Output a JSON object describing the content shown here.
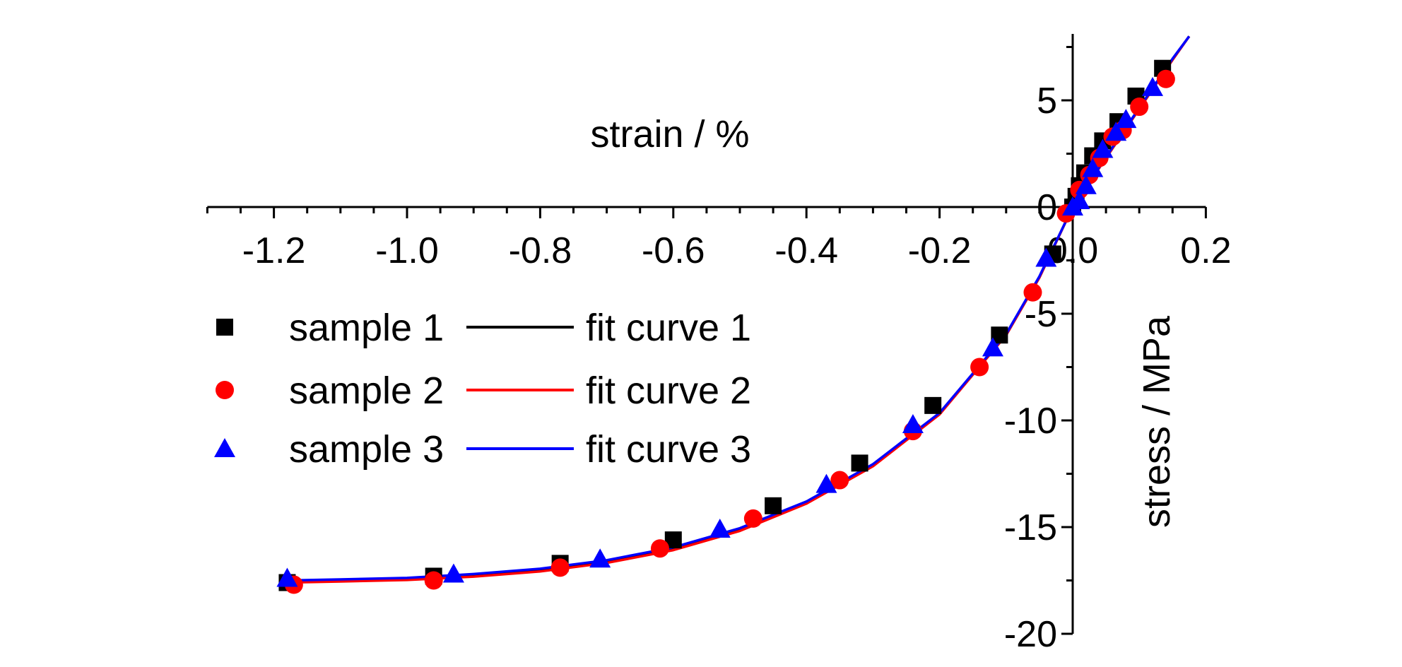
{
  "chart_data": {
    "type": "scatter",
    "xlabel": "strain / %",
    "ylabel": "stress / MPa",
    "xlim": [
      -1.3,
      0.2
    ],
    "ylim": [
      -20,
      8
    ],
    "x_ticks": [
      -1.2,
      -1.0,
      -0.8,
      -0.6,
      -0.4,
      -0.2,
      0.0,
      0.2
    ],
    "x_tick_labels": [
      "-1.2",
      "-1.0",
      "-0.8",
      "-0.6",
      "-0.4",
      "-0.2",
      "0.0",
      "0.2"
    ],
    "y_ticks": [
      -20,
      -15,
      -10,
      -5,
      0,
      5
    ],
    "y_tick_labels": [
      "-20",
      "-15",
      "-10",
      "-5",
      "0",
      "5"
    ],
    "axes_cross_at_origin": true,
    "grid": false,
    "legend_position": "left-middle",
    "series": [
      {
        "name": "sample 1",
        "kind": "scatter",
        "marker": "square",
        "color": "#000000",
        "points": [
          [
            -1.18,
            -17.6
          ],
          [
            -0.96,
            -17.3
          ],
          [
            -0.77,
            -16.7
          ],
          [
            -0.6,
            -15.6
          ],
          [
            -0.45,
            -14.0
          ],
          [
            -0.32,
            -12.0
          ],
          [
            -0.21,
            -9.3
          ],
          [
            -0.11,
            -6.0
          ],
          [
            -0.03,
            -2.2
          ],
          [
            0.0,
            0.0
          ],
          [
            0.005,
            0.5
          ],
          [
            0.01,
            1.0
          ],
          [
            0.018,
            1.6
          ],
          [
            0.03,
            2.4
          ],
          [
            0.045,
            3.1
          ],
          [
            0.068,
            4.0
          ],
          [
            0.095,
            5.2
          ],
          [
            0.135,
            6.5
          ]
        ]
      },
      {
        "name": "sample 2",
        "kind": "scatter",
        "marker": "circle",
        "color": "#ff0000",
        "points": [
          [
            -1.17,
            -17.7
          ],
          [
            -0.96,
            -17.5
          ],
          [
            -0.77,
            -16.9
          ],
          [
            -0.62,
            -16.0
          ],
          [
            -0.48,
            -14.6
          ],
          [
            -0.35,
            -12.8
          ],
          [
            -0.24,
            -10.5
          ],
          [
            -0.14,
            -7.5
          ],
          [
            -0.06,
            -4.0
          ],
          [
            -0.01,
            -0.3
          ],
          [
            0.01,
            0.8
          ],
          [
            0.025,
            1.5
          ],
          [
            0.04,
            2.3
          ],
          [
            0.06,
            3.3
          ],
          [
            0.075,
            3.6
          ],
          [
            0.1,
            4.7
          ],
          [
            0.14,
            6.0
          ]
        ]
      },
      {
        "name": "sample 3",
        "kind": "scatter",
        "marker": "triangle",
        "color": "#0000ff",
        "points": [
          [
            -1.18,
            -17.4
          ],
          [
            -0.93,
            -17.2
          ],
          [
            -0.71,
            -16.5
          ],
          [
            -0.53,
            -15.1
          ],
          [
            -0.37,
            -13.0
          ],
          [
            -0.24,
            -10.2
          ],
          [
            -0.12,
            -6.6
          ],
          [
            -0.04,
            -2.4
          ],
          [
            0.0,
            0.0
          ],
          [
            0.01,
            0.3
          ],
          [
            0.02,
            1.0
          ],
          [
            0.03,
            1.8
          ],
          [
            0.045,
            2.7
          ],
          [
            0.065,
            3.5
          ],
          [
            0.08,
            4.1
          ],
          [
            0.12,
            5.6
          ]
        ]
      },
      {
        "name": "fit curve 1",
        "kind": "line",
        "color": "#000000",
        "points": [
          [
            -1.18,
            -17.55
          ],
          [
            -1.1,
            -17.5
          ],
          [
            -1.0,
            -17.42
          ],
          [
            -0.9,
            -17.25
          ],
          [
            -0.8,
            -17.0
          ],
          [
            -0.7,
            -16.6
          ],
          [
            -0.6,
            -16.0
          ],
          [
            -0.5,
            -15.1
          ],
          [
            -0.4,
            -13.85
          ],
          [
            -0.3,
            -12.1
          ],
          [
            -0.2,
            -9.7
          ],
          [
            -0.1,
            -6.0
          ],
          [
            -0.05,
            -3.3
          ],
          [
            0.0,
            0.0
          ],
          [
            0.05,
            2.3
          ],
          [
            0.1,
            4.6
          ],
          [
            0.15,
            6.9
          ],
          [
            0.175,
            8.0
          ]
        ]
      },
      {
        "name": "fit curve 2",
        "kind": "line",
        "color": "#ff0000",
        "points": [
          [
            -1.18,
            -17.6
          ],
          [
            -1.1,
            -17.55
          ],
          [
            -1.0,
            -17.48
          ],
          [
            -0.9,
            -17.32
          ],
          [
            -0.8,
            -17.08
          ],
          [
            -0.7,
            -16.68
          ],
          [
            -0.6,
            -16.08
          ],
          [
            -0.5,
            -15.18
          ],
          [
            -0.4,
            -13.9
          ],
          [
            -0.3,
            -12.15
          ],
          [
            -0.2,
            -9.72
          ],
          [
            -0.1,
            -6.0
          ],
          [
            -0.05,
            -3.3
          ],
          [
            0.0,
            0.0
          ],
          [
            0.05,
            2.3
          ],
          [
            0.1,
            4.6
          ],
          [
            0.15,
            6.9
          ],
          [
            0.175,
            8.0
          ]
        ]
      },
      {
        "name": "fit curve 3",
        "kind": "line",
        "color": "#0000ff",
        "points": [
          [
            -1.18,
            -17.5
          ],
          [
            -1.1,
            -17.45
          ],
          [
            -1.0,
            -17.38
          ],
          [
            -0.9,
            -17.2
          ],
          [
            -0.8,
            -16.95
          ],
          [
            -0.7,
            -16.55
          ],
          [
            -0.6,
            -15.95
          ],
          [
            -0.5,
            -15.05
          ],
          [
            -0.4,
            -13.8
          ],
          [
            -0.3,
            -12.05
          ],
          [
            -0.2,
            -9.65
          ],
          [
            -0.1,
            -5.95
          ],
          [
            -0.05,
            -3.25
          ],
          [
            0.0,
            0.0
          ],
          [
            0.05,
            2.35
          ],
          [
            0.1,
            4.65
          ],
          [
            0.15,
            6.95
          ],
          [
            0.175,
            8.0
          ]
        ]
      }
    ],
    "legend": {
      "markers": [
        {
          "label": "sample 1",
          "marker": "square",
          "color": "#000000"
        },
        {
          "label": "sample 2",
          "marker": "circle",
          "color": "#ff0000"
        },
        {
          "label": "sample 3",
          "marker": "triangle",
          "color": "#0000ff"
        }
      ],
      "lines": [
        {
          "label": "fit curve 1",
          "color": "#000000"
        },
        {
          "label": "fit curve 2",
          "color": "#ff0000"
        },
        {
          "label": "fit curve 3",
          "color": "#0000ff"
        }
      ]
    }
  }
}
